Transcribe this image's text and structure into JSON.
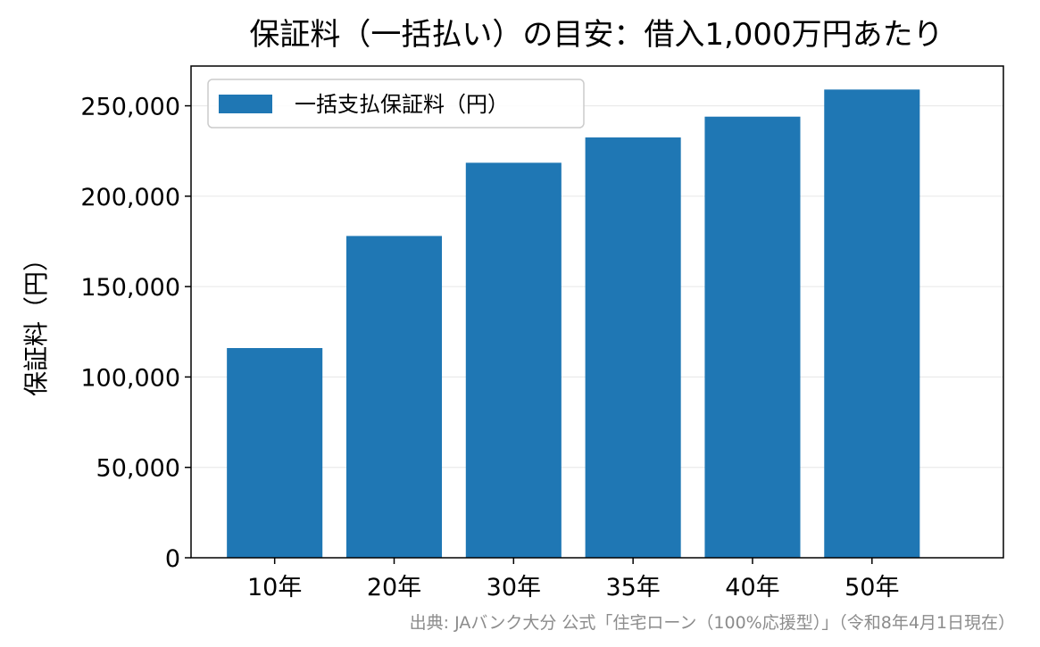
{
  "chart_data": {
    "type": "bar",
    "title": "保証料（一括払い）の目安：借入1,000万円あたり",
    "xlabel": "",
    "ylabel": "保証料（円）",
    "categories": [
      "10年",
      "20年",
      "30年",
      "35年",
      "40年",
      "50年"
    ],
    "series": [
      {
        "name": "一括支払保証料（円）",
        "color": "#1f77b4",
        "values": [
          116000,
          178000,
          218500,
          232500,
          244000,
          259000
        ]
      }
    ],
    "ylim": [
      0,
      272000
    ],
    "yticks": [
      0,
      50000,
      100000,
      150000,
      200000,
      250000
    ],
    "ytick_labels": [
      "0",
      "50,000",
      "100,000",
      "150,000",
      "200,000",
      "250,000"
    ],
    "grid": "y-major",
    "legend_position": "upper-left",
    "source_note": "出典: JAバンク大分 公式「住宅ローン（100%応援型）」（令和8年4月1日現在）"
  }
}
